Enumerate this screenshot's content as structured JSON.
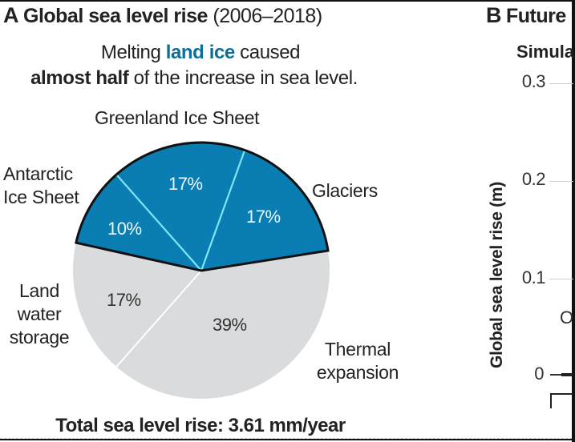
{
  "panel_a": {
    "letter": "A",
    "title_bold": "Global sea level rise",
    "title_regular": " (2006–2018)",
    "subtitle_line1_pre": "Melting ",
    "subtitle_line1_accent": "land ice",
    "subtitle_line1_post": " caused",
    "subtitle_line2_bold": "almost half",
    "subtitle_line2_post": " of the increase in sea level.",
    "total": "Total sea level rise: 3.61 mm/year"
  },
  "colors": {
    "land_ice": "#0a7db3",
    "other": "#dadbdc",
    "accent_text": "#0d6f98",
    "separator_ice": "#7fe6f5",
    "outline": "#111111"
  },
  "chart_data": [
    {
      "type": "pie",
      "title": "Global sea level rise (2006–2018)",
      "subtitle": "Melting land ice caused almost half of the increase in sea level.",
      "note": "Total sea level rise: 3.61 mm/year",
      "slices": [
        {
          "name": "Glaciers",
          "label_lines": [
            "Glaciers"
          ],
          "value": 17,
          "label": "17%",
          "group": "land_ice"
        },
        {
          "name": "Greenland Ice Sheet",
          "label_lines": [
            "Greenland Ice Sheet"
          ],
          "value": 17,
          "label": "17%",
          "group": "land_ice"
        },
        {
          "name": "Antarctic Ice Sheet",
          "label_lines": [
            "Antarctic",
            "Ice Sheet"
          ],
          "value": 10,
          "label": "10%",
          "group": "land_ice"
        },
        {
          "name": "Land water storage",
          "label_lines": [
            "Land",
            "water",
            "storage"
          ],
          "value": 17,
          "label": "17%",
          "group": "other"
        },
        {
          "name": "Thermal expansion",
          "label_lines": [
            "Thermal",
            "expansion"
          ],
          "value": 39,
          "label": "39%",
          "group": "other"
        }
      ]
    },
    {
      "type": "line",
      "title": "Future",
      "subtitle": "Simula",
      "ylabel": "Global sea level rise (m)",
      "yticks": [
        "0.3",
        "0.2",
        "0.1",
        "0"
      ],
      "ylim": [
        0,
        0.3
      ],
      "partial_text": "O",
      "truncated": true
    }
  ],
  "panel_b": {
    "letter": "B",
    "title": "Future",
    "subtitle": "Simula",
    "ylabel": "Global sea level rise (m)",
    "ticks": [
      "0.3",
      "0.2",
      "0.1",
      "0"
    ],
    "partial_text": "O"
  }
}
